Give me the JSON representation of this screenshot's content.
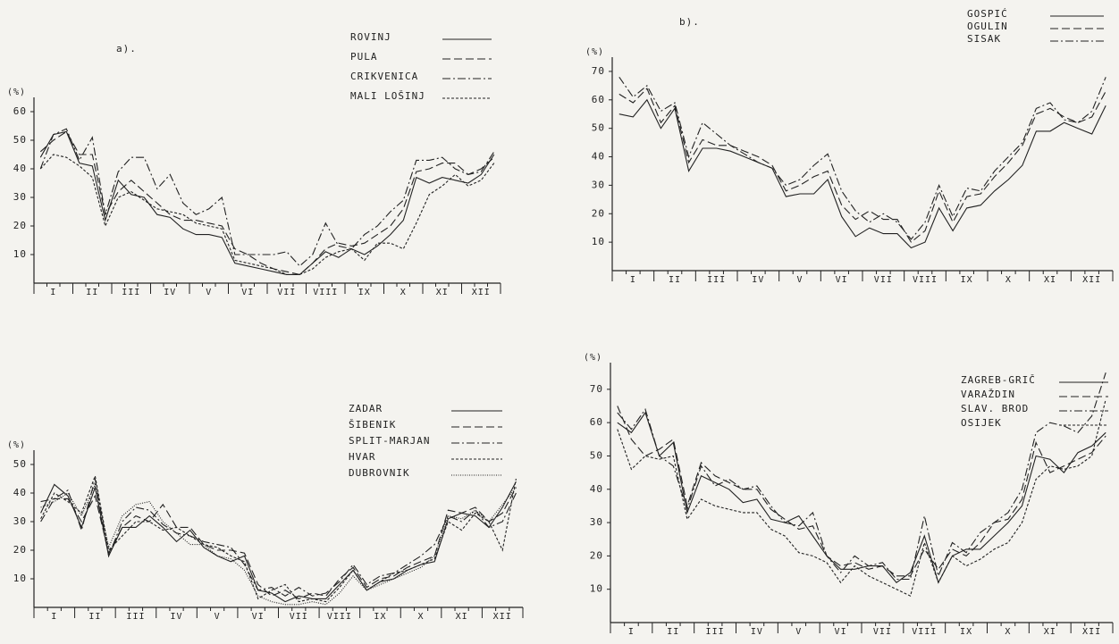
{
  "chart_data": [
    {
      "type": "line",
      "title": "a).",
      "ylabel": "(%)",
      "ylim": [
        0,
        65
      ],
      "yticks": [
        10,
        20,
        30,
        40,
        50,
        60
      ],
      "categories": [
        null,
        "I",
        null,
        null,
        "II",
        null,
        null,
        "III",
        null,
        null,
        "IV",
        null,
        null,
        "V",
        null,
        null,
        "VI",
        null,
        null,
        "VII",
        null,
        null,
        "VIII",
        null,
        null,
        "IX",
        null,
        null,
        "X",
        null,
        null,
        "XI",
        null,
        null,
        "XII",
        null
      ],
      "series": [
        {
          "name": "ROVINJ",
          "color": "#222",
          "line_style": "solid",
          "values": [
            44,
            52,
            53,
            42,
            41,
            22,
            36,
            31,
            30,
            24,
            23,
            19,
            17,
            17,
            16,
            7,
            6,
            5,
            4,
            3,
            3,
            7,
            11,
            9,
            12,
            10,
            13,
            17,
            22,
            37,
            35,
            37,
            36,
            35,
            38,
            45
          ]
        },
        {
          "name": "PULA",
          "color": "#222",
          "line_style": "dashed",
          "values": [
            46,
            50,
            53,
            45,
            45,
            24,
            32,
            36,
            32,
            28,
            24,
            22,
            22,
            21,
            20,
            12,
            10,
            7,
            5,
            4,
            3,
            7,
            12,
            14,
            13,
            14,
            17,
            20,
            26,
            39,
            40,
            42,
            42,
            38,
            40,
            44
          ]
        },
        {
          "name": "CRIKVENICA",
          "color": "#222",
          "line_style": "dashdot",
          "values": [
            40,
            52,
            54,
            43,
            51,
            24,
            39,
            44,
            44,
            33,
            38,
            28,
            24,
            26,
            30,
            10,
            10,
            10,
            10,
            11,
            6,
            10,
            21,
            13,
            12,
            17,
            20,
            25,
            29,
            43,
            43,
            44,
            40,
            38,
            39,
            46
          ]
        },
        {
          "name": "MALI LOŠINJ",
          "color": "#222",
          "line_style": "dotted",
          "values": [
            40,
            45,
            44,
            41,
            37,
            20,
            30,
            32,
            29,
            26,
            25,
            24,
            21,
            20,
            19,
            8,
            7,
            6,
            5,
            3,
            3,
            5,
            9,
            11,
            12,
            8,
            14,
            14,
            12,
            21,
            31,
            34,
            38,
            34,
            36,
            42
          ]
        }
      ]
    },
    {
      "type": "line",
      "title": "b).",
      "ylabel": "(%)",
      "ylim": [
        0,
        75
      ],
      "yticks": [
        10,
        20,
        30,
        40,
        50,
        60,
        70
      ],
      "categories": [
        null,
        "I",
        null,
        null,
        "II",
        null,
        null,
        "III",
        null,
        null,
        "IV",
        null,
        null,
        "V",
        null,
        null,
        "VI",
        null,
        null,
        "VII",
        null,
        null,
        "VIII",
        null,
        null,
        "IX",
        null,
        null,
        "X",
        null,
        null,
        "XI",
        null,
        null,
        "XII",
        null
      ],
      "series": [
        {
          "name": "GOSPIĆ",
          "color": "#222",
          "line_style": "solid",
          "values": [
            55,
            54,
            60,
            50,
            57,
            35,
            43,
            43,
            42,
            40,
            38,
            36,
            26,
            27,
            27,
            32,
            19,
            12,
            15,
            13,
            13,
            8,
            10,
            22,
            14,
            22,
            23,
            28,
            32,
            37,
            49,
            49,
            52,
            50,
            48,
            58
          ]
        },
        {
          "name": "OGULIN",
          "color": "#222",
          "line_style": "dashed",
          "values": [
            62,
            59,
            64,
            52,
            58,
            38,
            46,
            44,
            44,
            42,
            40,
            37,
            28,
            30,
            33,
            35,
            23,
            18,
            21,
            18,
            18,
            10,
            14,
            28,
            17,
            26,
            27,
            33,
            38,
            44,
            55,
            57,
            54,
            52,
            54,
            63
          ]
        },
        {
          "name": "SISAK",
          "color": "#222",
          "line_style": "dashdot",
          "values": [
            68,
            61,
            65,
            56,
            59,
            40,
            52,
            48,
            44,
            41,
            38,
            36,
            30,
            32,
            37,
            41,
            28,
            21,
            17,
            20,
            17,
            11,
            17,
            30,
            19,
            29,
            28,
            35,
            40,
            45,
            57,
            59,
            53,
            52,
            56,
            68
          ]
        }
      ]
    },
    {
      "type": "line",
      "ylabel": "(%)",
      "ylim": [
        0,
        55
      ],
      "yticks": [
        10,
        20,
        30,
        40,
        50
      ],
      "categories": [
        null,
        "I",
        null,
        null,
        "II",
        null,
        null,
        "III",
        null,
        null,
        "IV",
        null,
        null,
        "V",
        null,
        null,
        "VI",
        null,
        null,
        "VII",
        null,
        null,
        "VIII",
        null,
        null,
        "IX",
        null,
        null,
        "X",
        null,
        null,
        "XI",
        null,
        null,
        "XII",
        null
      ],
      "series": [
        {
          "name": "ZADAR",
          "color": "#222",
          "line_style": "solid",
          "values": [
            33,
            43,
            39,
            28,
            42,
            18,
            28,
            28,
            32,
            28,
            23,
            27,
            21,
            18,
            16,
            18,
            6,
            5,
            2,
            4,
            3,
            3,
            8,
            13,
            6,
            9,
            10,
            13,
            15,
            16,
            31,
            33,
            32,
            28,
            35,
            44
          ]
        },
        {
          "name": "ŠIBENIK",
          "color": "#222",
          "line_style": "dashed",
          "values": [
            37,
            38,
            38,
            30,
            39,
            19,
            28,
            32,
            30,
            36,
            28,
            28,
            22,
            20,
            20,
            19,
            8,
            4,
            6,
            3,
            5,
            4,
            10,
            14,
            7,
            10,
            11,
            14,
            16,
            18,
            34,
            33,
            35,
            30,
            33,
            42
          ]
        },
        {
          "name": "SPLIT-MARJAN",
          "color": "#222",
          "line_style": "dashdot",
          "values": [
            30,
            38,
            41,
            27,
            45,
            18,
            30,
            35,
            34,
            29,
            26,
            25,
            23,
            22,
            21,
            15,
            6,
            7,
            4,
            7,
            4,
            5,
            9,
            15,
            8,
            11,
            12,
            15,
            18,
            22,
            32,
            30,
            34,
            28,
            30,
            40
          ]
        },
        {
          "name": "HVAR",
          "color": "#222",
          "line_style": "dotted",
          "values": [
            31,
            40,
            37,
            33,
            46,
            20,
            25,
            30,
            30,
            27,
            28,
            25,
            22,
            21,
            18,
            16,
            3,
            6,
            8,
            2,
            3,
            2,
            7,
            13,
            6,
            9,
            12,
            13,
            15,
            17,
            30,
            27,
            33,
            30,
            20,
            45
          ]
        },
        {
          "name": "DUBROVNIK",
          "color": "#222",
          "line_style": "fine-dotted",
          "values": [
            35,
            37,
            40,
            32,
            43,
            21,
            32,
            36,
            37,
            30,
            26,
            22,
            22,
            18,
            17,
            13,
            4,
            2,
            1,
            1,
            2,
            1,
            5,
            11,
            6,
            8,
            10,
            12,
            14,
            18,
            32,
            31,
            34,
            30,
            36,
            42
          ]
        }
      ]
    },
    {
      "type": "line",
      "ylabel": "(%)",
      "ylim": [
        0,
        78
      ],
      "yticks": [
        10,
        20,
        30,
        40,
        50,
        60,
        70
      ],
      "categories": [
        null,
        "I",
        null,
        null,
        "II",
        null,
        null,
        "III",
        null,
        null,
        "IV",
        null,
        null,
        "V",
        null,
        null,
        "VI",
        null,
        null,
        "VII",
        null,
        null,
        "VIII",
        null,
        null,
        "IX",
        null,
        null,
        "X",
        null,
        null,
        "XI",
        null,
        null,
        "XII",
        null
      ],
      "series": [
        {
          "name": "ZAGREB-GRIČ",
          "color": "#222",
          "line_style": "solid",
          "values": [
            60,
            57,
            63,
            50,
            54,
            33,
            44,
            42,
            40,
            36,
            37,
            31,
            30,
            32,
            26,
            20,
            16,
            16,
            17,
            17,
            12,
            15,
            26,
            12,
            20,
            22,
            22,
            26,
            30,
            35,
            50,
            49,
            45,
            51,
            53,
            57
          ]
        },
        {
          "name": "VARAŽDIN",
          "color": "#222",
          "line_style": "dashed",
          "values": [
            65,
            55,
            50,
            52,
            55,
            35,
            48,
            44,
            42,
            40,
            40,
            34,
            31,
            28,
            29,
            20,
            17,
            18,
            16,
            17,
            14,
            14,
            22,
            16,
            22,
            20,
            24,
            30,
            31,
            37,
            54,
            45,
            47,
            49,
            51,
            56
          ]
        },
        {
          "name": "SLAV. BROD",
          "color": "#222",
          "line_style": "dashdot",
          "values": [
            63,
            58,
            64,
            50,
            47,
            34,
            47,
            41,
            43,
            40,
            41,
            35,
            30,
            29,
            33,
            20,
            15,
            20,
            17,
            18,
            13,
            13,
            32,
            14,
            24,
            21,
            27,
            30,
            33,
            40,
            57,
            60,
            59,
            57,
            62,
            75
          ]
        },
        {
          "name": "OSIJEK",
          "color": "#222",
          "line_style": "dotted",
          "values": [
            58,
            46,
            50,
            49,
            50,
            31,
            37,
            35,
            34,
            33,
            33,
            28,
            26,
            21,
            20,
            18,
            12,
            17,
            14,
            12,
            10,
            8,
            24,
            12,
            20,
            17,
            19,
            22,
            24,
            30,
            43,
            47,
            46,
            47,
            50,
            67
          ]
        }
      ]
    }
  ]
}
